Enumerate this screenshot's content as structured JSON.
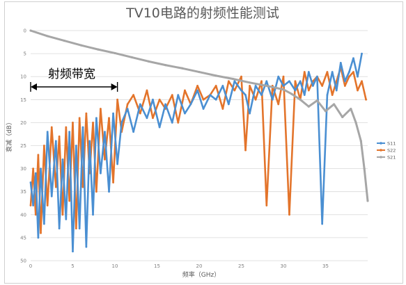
{
  "chart_data": {
    "type": "line",
    "title": "TV10电路的射频性能测试",
    "xlabel": "频率（GHz）",
    "ylabel": "衰减（dB）",
    "xlim": [
      0,
      40
    ],
    "ylim": [
      50,
      0
    ],
    "y_reversed": true,
    "x_ticks": [
      "0",
      "5",
      "10",
      "15",
      "20",
      "25",
      "30",
      "35"
    ],
    "x_tick_values": [
      0,
      5,
      10,
      15,
      20,
      25,
      30,
      35
    ],
    "y_ticks": [
      "0",
      "5",
      "10",
      "15",
      "20",
      "25",
      "30",
      "35",
      "40",
      "45",
      "50"
    ],
    "y_tick_values": [
      0,
      5,
      10,
      15,
      20,
      25,
      30,
      35,
      40,
      45,
      50
    ],
    "grid": "horizontal",
    "legend_position": "right",
    "annotation": {
      "text": "射频带宽",
      "x_from": 0,
      "x_to": 10.3
    },
    "series": [
      {
        "name": "S11",
        "color": "#4a8fd2",
        "x": [
          0,
          0.3,
          0.6,
          0.9,
          1.2,
          1.6,
          2.0,
          2.5,
          3.0,
          3.4,
          3.8,
          4.2,
          4.6,
          5.0,
          5.4,
          5.8,
          6.2,
          6.6,
          7.0,
          7.4,
          7.8,
          8.3,
          8.8,
          9.3,
          9.8,
          10.3,
          10.8,
          11.5,
          12.2,
          13.0,
          13.8,
          14.5,
          15.3,
          16.0,
          16.8,
          17.5,
          18.3,
          19.0,
          19.8,
          20.5,
          21.3,
          22.0,
          22.8,
          23.5,
          24.2,
          25.0,
          25.5,
          26.0,
          26.7,
          27.4,
          28.0,
          28.7,
          29.4,
          30.0,
          30.7,
          31.4,
          32.0,
          32.5,
          33.0,
          33.5,
          34.0,
          34.6,
          35.2,
          35.8,
          36.3,
          36.8,
          37.3,
          37.8,
          38.3,
          38.8,
          39.3
        ],
        "values": [
          33,
          38,
          31,
          45,
          30,
          42,
          22,
          36,
          24,
          43,
          28,
          41,
          22,
          48,
          25,
          43,
          21,
          47,
          24,
          40,
          19,
          31,
          22,
          35,
          18,
          29,
          20,
          17,
          22,
          16,
          19,
          15,
          21,
          16,
          20,
          14,
          18,
          16,
          13,
          17,
          14,
          15,
          12,
          16,
          11,
          13,
          14,
          18,
          12,
          14,
          11,
          15,
          10,
          12,
          11,
          13,
          11,
          14,
          9,
          12,
          10,
          42,
          14,
          9,
          13,
          7,
          11,
          9,
          6,
          10,
          5
        ]
      },
      {
        "name": "S22",
        "color": "#e3742b",
        "x": [
          0,
          0.3,
          0.6,
          0.9,
          1.2,
          1.6,
          2.0,
          2.5,
          3.0,
          3.4,
          3.8,
          4.2,
          4.6,
          5.0,
          5.4,
          5.8,
          6.2,
          6.6,
          7.0,
          7.4,
          7.8,
          8.3,
          8.8,
          9.3,
          9.8,
          10.3,
          10.8,
          11.5,
          12.2,
          13.0,
          13.8,
          14.5,
          15.3,
          16.0,
          16.8,
          17.5,
          18.3,
          19.0,
          19.8,
          20.5,
          21.3,
          22.0,
          22.8,
          23.5,
          24.2,
          25.0,
          25.5,
          26.0,
          26.7,
          27.4,
          28.0,
          28.7,
          29.4,
          30.0,
          30.7,
          31.4,
          32.0,
          32.5,
          33.0,
          33.5,
          34.0,
          34.6,
          35.2,
          35.8,
          36.3,
          36.8,
          37.3,
          37.8,
          38.3,
          38.8,
          39.3,
          39.8
        ],
        "values": [
          38,
          30,
          40,
          27,
          44,
          25,
          38,
          21,
          34,
          23,
          40,
          21,
          37,
          20,
          43,
          19,
          34,
          18,
          31,
          20,
          35,
          17,
          28,
          19,
          33,
          15,
          22,
          16,
          14,
          18,
          13,
          19,
          15,
          17,
          14,
          20,
          13,
          16,
          12,
          15,
          14,
          12,
          17,
          11,
          13,
          10,
          26,
          12,
          15,
          11,
          38,
          12,
          16,
          10,
          40,
          11,
          15,
          9,
          13,
          11,
          10,
          12,
          9,
          14,
          11,
          8,
          12,
          10,
          9,
          13,
          11,
          15
        ]
      },
      {
        "name": "S21",
        "color": "#a6a6a6",
        "x": [
          0,
          2,
          4,
          6,
          8,
          10,
          12,
          14,
          16,
          18,
          20,
          22,
          24,
          26,
          28,
          30,
          31,
          32,
          33,
          34,
          35,
          36,
          37,
          38,
          38.6,
          39.2,
          39.6,
          40.0
        ],
        "values": [
          0,
          1.2,
          2.2,
          3.2,
          4.1,
          4.9,
          5.8,
          6.7,
          7.5,
          8.2,
          9.0,
          9.8,
          10.5,
          11.3,
          12.0,
          12.8,
          13.8,
          15.0,
          16.5,
          15.2,
          17.5,
          16.0,
          18.8,
          17.0,
          20.0,
          24.0,
          30.0,
          37.0
        ]
      }
    ]
  }
}
